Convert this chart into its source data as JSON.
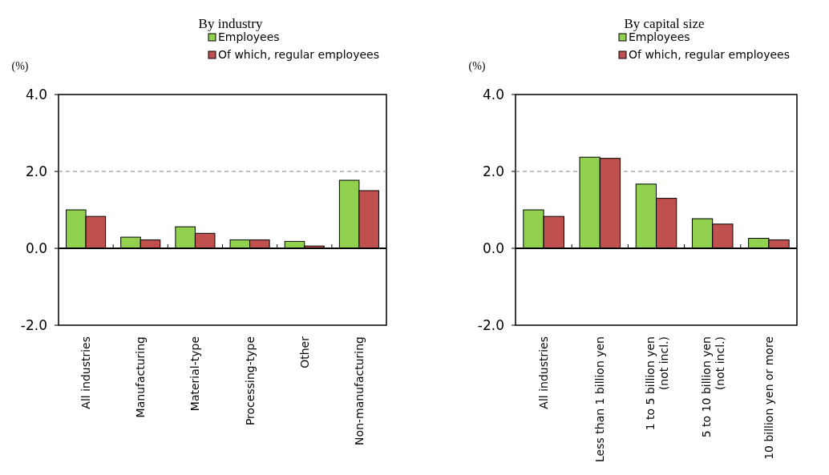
{
  "chart_data": [
    {
      "type": "bar",
      "title": "By industry",
      "ylabel": "(%)",
      "categories": [
        "All industries",
        "Manufacturing",
        "Material-type",
        "Processing-type",
        "Other",
        "Non-manufacturing"
      ],
      "series": [
        {
          "name": "Employees",
          "color": "#92d050",
          "values": [
            1.0,
            0.29,
            0.56,
            0.22,
            0.18,
            1.77
          ]
        },
        {
          "name": "Of which, regular employees",
          "color": "#c0504d",
          "values": [
            0.83,
            0.22,
            0.39,
            0.22,
            0.06,
            1.5
          ]
        }
      ],
      "ylim": [
        -2,
        4
      ],
      "yticks": [
        {
          "value": -2,
          "label": "-2.0"
        },
        {
          "value": 0,
          "label": "0.0"
        },
        {
          "value": 2,
          "label": "2.0"
        },
        {
          "value": 4,
          "label": "4.0"
        }
      ],
      "ref_lines": [
        {
          "axis": "y",
          "value": 2,
          "color": "#808080",
          "line_style": "dashed"
        }
      ],
      "legend": "top right",
      "grid": false
    },
    {
      "type": "bar",
      "title": "By capital size",
      "ylabel": "(%)",
      "categories": [
        "All industries",
        "Less than 1 billion yen",
        "1 to 5 billion yen\n(not incl.)",
        "5 to 10 billion yen\n(not incl.)",
        "10 billion yen or more"
      ],
      "series": [
        {
          "name": "Employees",
          "color": "#92d050",
          "values": [
            1.0,
            2.37,
            1.67,
            0.77,
            0.26
          ]
        },
        {
          "name": "Of which, regular employees",
          "color": "#c0504d",
          "values": [
            0.83,
            2.34,
            1.3,
            0.63,
            0.22
          ]
        }
      ],
      "ylim": [
        -2,
        4
      ],
      "yticks": [
        {
          "value": -2,
          "label": "-2.0"
        },
        {
          "value": 0,
          "label": "0.0"
        },
        {
          "value": 2,
          "label": "2.0"
        },
        {
          "value": 4,
          "label": "4.0"
        }
      ],
      "ref_lines": [
        {
          "axis": "y",
          "value": 2,
          "color": "#808080",
          "line_style": "dashed"
        }
      ],
      "legend": "top right",
      "grid": false
    }
  ]
}
